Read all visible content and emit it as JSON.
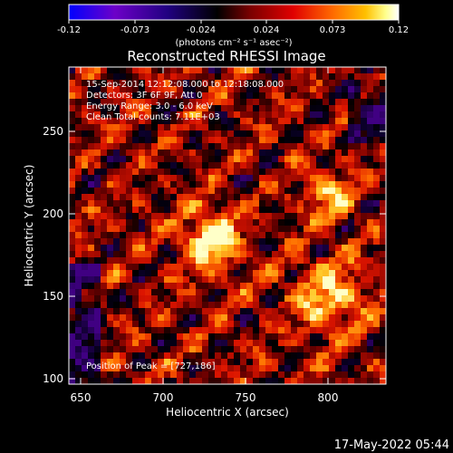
{
  "colorbar": {
    "ticks": [
      "-0.12",
      "-0.073",
      "-0.024",
      "0.024",
      "0.073",
      "0.12"
    ],
    "unit_label": "(photons cm⁻² s⁻¹ asec⁻²)",
    "colors": [
      "#0000ff",
      "#6d00c8",
      "#200080",
      "#000000",
      "#7a0000",
      "#e00000",
      "#ff6a00",
      "#ffc000",
      "#ffff8c",
      "#ffffff"
    ]
  },
  "title": "Reconstructed RHESSI Image",
  "annotations": {
    "time": "15-Sep-2014 12:12:08.000 to 12:18:08.000",
    "detectors": "Detectors: 3F 6F 9F, Att 0",
    "energy": "Energy Range: 3.0 - 6.0 keV",
    "method": "Clean     Total counts: 7.11E+03",
    "peak": "Position of Peak = [727,186]"
  },
  "axes": {
    "xlabel": "Heliocentric X (arcsec)",
    "ylabel": "Heliocentric Y (arcsec)",
    "xticks": [
      "650",
      "700",
      "750",
      "800"
    ],
    "yticks": [
      "100",
      "150",
      "200",
      "250"
    ],
    "xlim": [
      640,
      835
    ],
    "ylim": [
      97,
      292
    ]
  },
  "image": {
    "peak": [
      727,
      186
    ],
    "secondary_sources": [
      [
        800,
        212
      ],
      [
        800,
        150
      ]
    ]
  },
  "footer": "17-May-2022 05:44"
}
